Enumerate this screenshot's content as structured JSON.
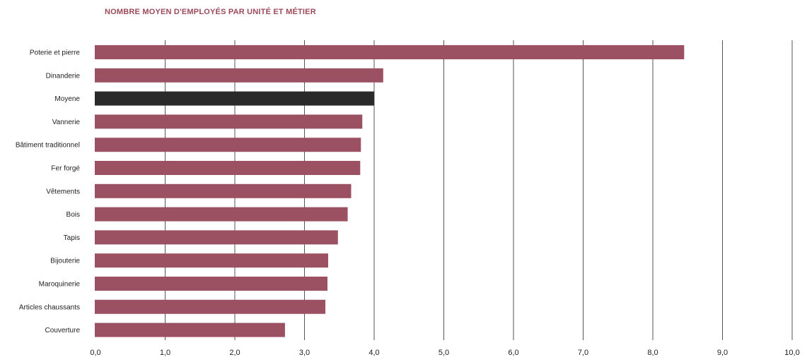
{
  "chart_data": {
    "type": "bar",
    "orientation": "horizontal",
    "title": "NOMBRE MOYEN D'EMPLOYÉS PAR UNITÉ ET MÉTIER",
    "xlabel": "",
    "ylabel": "",
    "categories": [
      "Poterie et pierre",
      "Dinanderie",
      "Moyene",
      "Vannerie",
      "Bâtiment traditionnel",
      "Fer forgé",
      "Vêtements",
      "Bois",
      "Tapis",
      "Bijouterie",
      "Maroquinerie",
      "Articles chaussants",
      "Couverture"
    ],
    "values": [
      8.45,
      4.13,
      4.0,
      3.83,
      3.81,
      3.8,
      3.67,
      3.62,
      3.48,
      3.34,
      3.33,
      3.3,
      2.72
    ],
    "highlight": "Moyene",
    "xlim": [
      0,
      10
    ],
    "ticks": [
      "0,0",
      "1,0",
      "2,0",
      "3,0",
      "4,0",
      "5,0",
      "6,0",
      "7,0",
      "8,0",
      "9,0",
      "10,0"
    ],
    "grid": "vertical",
    "colors": {
      "bar": "#9b5161",
      "highlight": "#2a2a2a",
      "grid": "#555555",
      "title": "#9b4a5b"
    }
  }
}
